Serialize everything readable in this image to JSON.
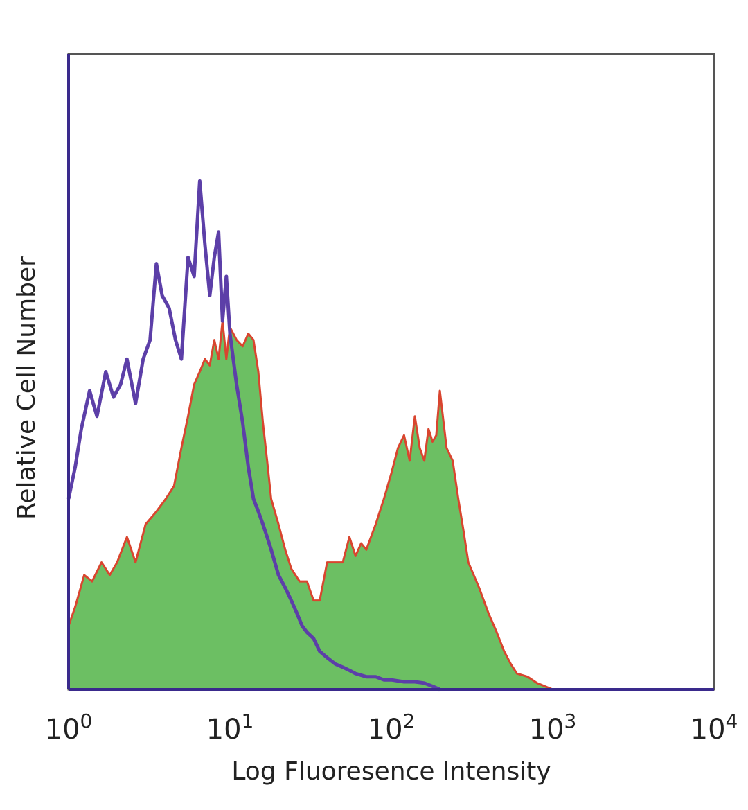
{
  "chart_data": {
    "type": "area",
    "xlabel": "Log Fluoresence Intensity",
    "ylabel": "Relative Cell Number",
    "x_scale": "log",
    "xlim": [
      1,
      10000
    ],
    "ylim": [
      0,
      1.0
    ],
    "x_ticks": [
      {
        "base": "10",
        "exp": "0",
        "value": 1
      },
      {
        "base": "10",
        "exp": "1",
        "value": 10
      },
      {
        "base": "10",
        "exp": "2",
        "value": 100
      },
      {
        "base": "10",
        "exp": "3",
        "value": 1000
      },
      {
        "base": "10",
        "exp": "4",
        "value": 10000
      }
    ],
    "grid": false,
    "legend": "none",
    "colors": {
      "control_line": "#5c3fa8",
      "stained_fill": "#6cbf63",
      "stained_line": "#d9452f",
      "frame": "#555555",
      "axis_left": "#3a2a8c"
    },
    "series": [
      {
        "style": "line",
        "color": "#5c3fa8",
        "x": [
          1.0,
          1.1,
          1.2,
          1.35,
          1.5,
          1.7,
          1.9,
          2.1,
          2.3,
          2.6,
          2.9,
          3.2,
          3.5,
          3.8,
          4.2,
          4.6,
          5.0,
          5.5,
          6.0,
          6.5,
          7.0,
          7.5,
          8.0,
          8.5,
          9.0,
          9.5,
          10.0,
          11.0,
          12.0,
          13.0,
          14.0,
          15.0,
          16.0,
          17.0,
          18.0,
          20.0,
          22.0,
          24.0,
          26.0,
          28.0,
          30.0,
          33.0,
          36.0,
          40.0,
          45.0,
          50.0,
          55.0,
          60.0,
          70.0,
          80.0,
          90.0,
          100.0,
          120.0,
          140.0,
          160.0,
          180.0,
          200.0
        ],
        "y": [
          0.3,
          0.35,
          0.41,
          0.47,
          0.43,
          0.5,
          0.46,
          0.48,
          0.52,
          0.45,
          0.52,
          0.55,
          0.67,
          0.62,
          0.6,
          0.55,
          0.52,
          0.68,
          0.65,
          0.8,
          0.7,
          0.62,
          0.68,
          0.72,
          0.58,
          0.65,
          0.56,
          0.48,
          0.42,
          0.35,
          0.3,
          0.28,
          0.26,
          0.24,
          0.22,
          0.18,
          0.16,
          0.14,
          0.12,
          0.1,
          0.09,
          0.08,
          0.06,
          0.05,
          0.04,
          0.035,
          0.03,
          0.025,
          0.02,
          0.02,
          0.015,
          0.015,
          0.012,
          0.012,
          0.01,
          0.005,
          0.0
        ]
      },
      {
        "style": "filled",
        "color": "#6cbf63",
        "x": [
          1.0,
          1.1,
          1.25,
          1.4,
          1.6,
          1.8,
          2.0,
          2.3,
          2.6,
          3.0,
          3.5,
          4.0,
          4.5,
          5.0,
          5.5,
          6.0,
          6.5,
          7.0,
          7.5,
          8.0,
          8.5,
          9.0,
          9.5,
          10.0,
          11.0,
          12.0,
          13.0,
          14.0,
          15.0,
          16.0,
          17.0,
          18.0,
          20.0,
          22.0,
          24.0,
          27.0,
          30.0,
          33.0,
          36.0,
          40.0,
          45.0,
          50.0,
          55.0,
          60.0,
          65.0,
          70.0,
          80.0,
          90.0,
          100.0,
          110.0,
          120.0,
          130.0,
          140.0,
          150.0,
          160.0,
          170.0,
          180.0,
          190.0,
          200.0,
          220.0,
          240.0,
          260.0,
          280.0,
          300.0,
          350.0,
          400.0,
          450.0,
          500.0,
          550.0,
          600.0,
          700.0,
          800.0,
          1000.0
        ],
        "y": [
          0.1,
          0.13,
          0.18,
          0.17,
          0.2,
          0.18,
          0.2,
          0.24,
          0.2,
          0.26,
          0.28,
          0.3,
          0.32,
          0.38,
          0.43,
          0.48,
          0.5,
          0.52,
          0.51,
          0.55,
          0.52,
          0.58,
          0.52,
          0.57,
          0.55,
          0.54,
          0.56,
          0.55,
          0.5,
          0.42,
          0.36,
          0.3,
          0.26,
          0.22,
          0.19,
          0.17,
          0.17,
          0.14,
          0.14,
          0.2,
          0.2,
          0.2,
          0.24,
          0.21,
          0.23,
          0.22,
          0.26,
          0.3,
          0.34,
          0.38,
          0.4,
          0.36,
          0.43,
          0.38,
          0.36,
          0.41,
          0.39,
          0.4,
          0.47,
          0.38,
          0.36,
          0.3,
          0.25,
          0.2,
          0.16,
          0.12,
          0.09,
          0.06,
          0.04,
          0.025,
          0.02,
          0.01,
          0.0
        ]
      }
    ]
  }
}
